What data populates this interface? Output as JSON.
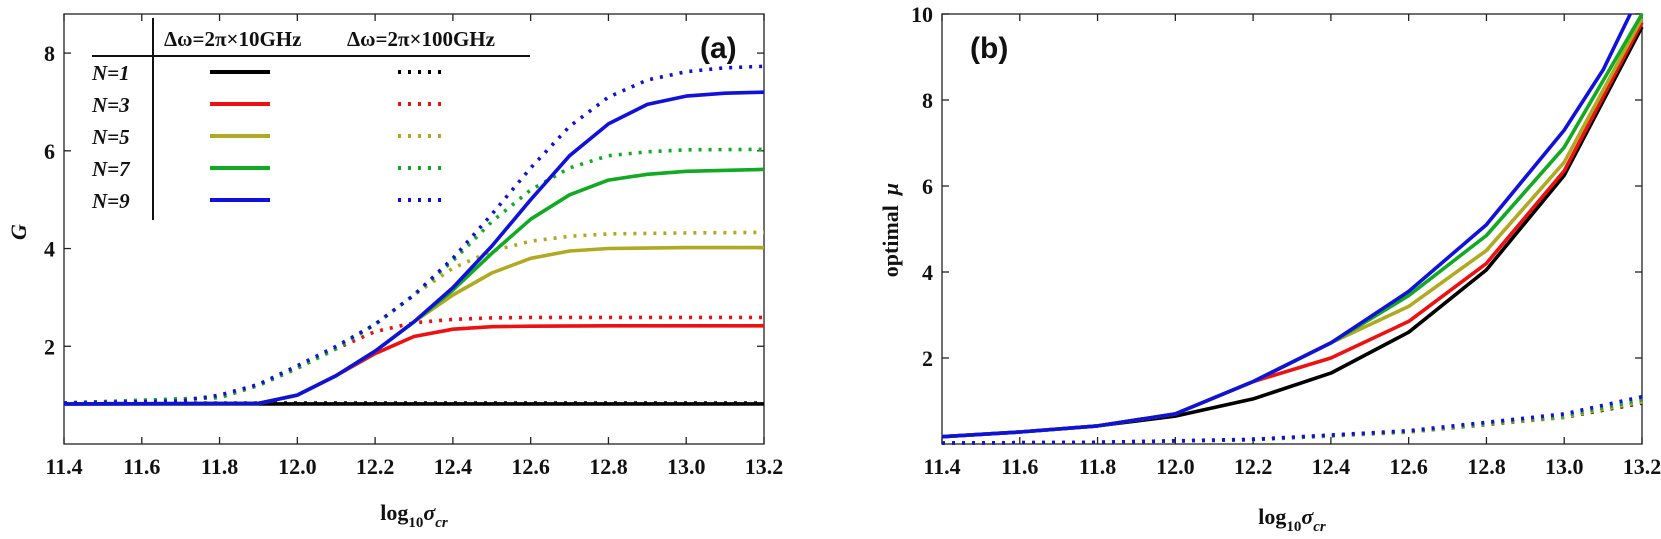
{
  "chart_data": [
    {
      "type": "line",
      "panel_label": "(a)",
      "ylabel": "G",
      "xlabel": {
        "main": "log",
        "sub": "10",
        "var": "σ",
        "varsub": "cr"
      },
      "xlim": [
        11.4,
        13.2
      ],
      "ylim": [
        0,
        8.8
      ],
      "xticks": [
        "11.4",
        "11.6",
        "11.8",
        "12.0",
        "12.2",
        "12.4",
        "12.6",
        "12.8",
        "13.0",
        "13.2"
      ],
      "yticks": [
        "2",
        "4",
        "6",
        "8"
      ],
      "legend": {
        "placement": "top-left",
        "col1_header": "Δω=2π×10GHz",
        "col2_header": "Δω=2π×100GHz",
        "rows": [
          {
            "label": "N=1",
            "color": "#000000"
          },
          {
            "label": "N=3",
            "color": "#ee1111"
          },
          {
            "label": "N=5",
            "color": "#b0aa22"
          },
          {
            "label": "N=7",
            "color": "#11aa22"
          },
          {
            "label": "N=9",
            "color": "#1111dd"
          }
        ]
      },
      "series": [
        {
          "name": "N=1 Δω=2π×10GHz",
          "color": "#000000",
          "style": "solid",
          "x": [
            11.4,
            13.2
          ],
          "y": [
            0.82,
            0.82
          ]
        },
        {
          "name": "N=1 Δω=2π×100GHz",
          "color": "#000000",
          "style": "dotted",
          "x": [
            11.4,
            13.2
          ],
          "y": [
            0.84,
            0.84
          ]
        },
        {
          "name": "N=3 Δω=2π×10GHz",
          "color": "#ee1111",
          "style": "solid",
          "x": [
            11.4,
            11.9,
            12.0,
            12.1,
            12.2,
            12.3,
            12.4,
            12.5,
            12.6,
            12.8,
            13.0,
            13.2
          ],
          "y": [
            0.82,
            0.83,
            1.0,
            1.4,
            1.85,
            2.2,
            2.35,
            2.4,
            2.41,
            2.42,
            2.42,
            2.42
          ]
        },
        {
          "name": "N=3 Δω=2π×100GHz",
          "color": "#ee1111",
          "style": "dotted",
          "x": [
            11.4,
            11.8,
            11.9,
            12.0,
            12.1,
            12.2,
            12.3,
            12.4,
            12.5,
            12.6,
            12.8,
            13.0,
            13.2
          ],
          "y": [
            0.84,
            0.95,
            1.2,
            1.55,
            1.95,
            2.3,
            2.48,
            2.55,
            2.58,
            2.59,
            2.59,
            2.59,
            2.59
          ]
        },
        {
          "name": "N=5 Δω=2π×10GHz",
          "color": "#b0aa22",
          "style": "solid",
          "x": [
            11.4,
            11.9,
            12.0,
            12.1,
            12.2,
            12.3,
            12.4,
            12.5,
            12.6,
            12.7,
            12.8,
            13.0,
            13.2
          ],
          "y": [
            0.82,
            0.83,
            1.0,
            1.4,
            1.9,
            2.5,
            3.05,
            3.5,
            3.8,
            3.95,
            4.0,
            4.02,
            4.02
          ]
        },
        {
          "name": "N=5 Δω=2π×100GHz",
          "color": "#b0aa22",
          "style": "dotted",
          "x": [
            11.4,
            11.8,
            11.9,
            12.0,
            12.1,
            12.2,
            12.3,
            12.4,
            12.5,
            12.6,
            12.7,
            12.8,
            13.0,
            13.2
          ],
          "y": [
            0.84,
            0.95,
            1.2,
            1.55,
            1.95,
            2.45,
            3.05,
            3.6,
            3.95,
            4.15,
            4.25,
            4.3,
            4.32,
            4.33
          ]
        },
        {
          "name": "N=7 Δω=2π×10GHz",
          "color": "#11aa22",
          "style": "solid",
          "x": [
            11.4,
            11.9,
            12.0,
            12.1,
            12.2,
            12.3,
            12.4,
            12.5,
            12.6,
            12.7,
            12.8,
            12.9,
            13.0,
            13.2
          ],
          "y": [
            0.82,
            0.83,
            1.0,
            1.4,
            1.9,
            2.5,
            3.15,
            3.9,
            4.6,
            5.1,
            5.4,
            5.52,
            5.58,
            5.62
          ]
        },
        {
          "name": "N=7 Δω=2π×100GHz",
          "color": "#11aa22",
          "style": "dotted",
          "x": [
            11.4,
            11.8,
            11.9,
            12.0,
            12.1,
            12.2,
            12.3,
            12.4,
            12.5,
            12.6,
            12.7,
            12.8,
            12.9,
            13.0,
            13.2
          ],
          "y": [
            0.84,
            0.95,
            1.2,
            1.55,
            1.95,
            2.45,
            3.05,
            3.75,
            4.55,
            5.2,
            5.65,
            5.9,
            5.98,
            6.02,
            6.03
          ]
        },
        {
          "name": "N=9 Δω=2π×10GHz",
          "color": "#1111dd",
          "style": "solid",
          "x": [
            11.4,
            11.9,
            12.0,
            12.1,
            12.2,
            12.3,
            12.4,
            12.5,
            12.6,
            12.7,
            12.8,
            12.9,
            13.0,
            13.1,
            13.2
          ],
          "y": [
            0.82,
            0.83,
            1.0,
            1.4,
            1.9,
            2.5,
            3.2,
            4.05,
            5.0,
            5.9,
            6.55,
            6.95,
            7.12,
            7.18,
            7.2
          ]
        },
        {
          "name": "N=9 Δω=2π×100GHz",
          "color": "#1111dd",
          "style": "dotted",
          "x": [
            11.4,
            11.7,
            11.8,
            11.9,
            12.0,
            12.1,
            12.2,
            12.3,
            12.4,
            12.5,
            12.6,
            12.7,
            12.8,
            12.9,
            13.0,
            13.1,
            13.2
          ],
          "y": [
            0.84,
            0.88,
            1.0,
            1.22,
            1.6,
            2.0,
            2.45,
            3.05,
            3.8,
            4.7,
            5.65,
            6.5,
            7.1,
            7.45,
            7.62,
            7.7,
            7.73
          ]
        }
      ]
    },
    {
      "type": "line",
      "panel_label": "(b)",
      "ylabel": {
        "main": "optimal",
        "var": "μ"
      },
      "xlabel": {
        "main": "log",
        "sub": "10",
        "var": "σ",
        "varsub": "cr"
      },
      "xlim": [
        11.4,
        13.2
      ],
      "ylim": [
        0,
        10
      ],
      "xticks": [
        "11.4",
        "11.6",
        "11.8",
        "12.0",
        "12.2",
        "12.4",
        "12.6",
        "12.8",
        "13.0",
        "13.2"
      ],
      "yticks": [
        "2",
        "4",
        "6",
        "8",
        "10"
      ],
      "series": [
        {
          "name": "N=1 Δω=2π×10GHz",
          "color": "#000000",
          "style": "solid",
          "x": [
            11.4,
            11.6,
            11.8,
            12.0,
            12.2,
            12.4,
            12.6,
            12.8,
            13.0,
            13.2
          ],
          "y": [
            0.17,
            0.28,
            0.42,
            0.65,
            1.05,
            1.65,
            2.6,
            4.05,
            6.25,
            9.7
          ]
        },
        {
          "name": "N=3 Δω=2π×10GHz",
          "color": "#ee1111",
          "style": "solid",
          "x": [
            11.4,
            11.6,
            11.8,
            12.0,
            12.2,
            12.4,
            12.6,
            12.8,
            13.0,
            13.2
          ],
          "y": [
            0.17,
            0.28,
            0.42,
            0.7,
            1.45,
            2.0,
            2.85,
            4.2,
            6.35,
            9.8
          ]
        },
        {
          "name": "N=5 Δω=2π×10GHz",
          "color": "#b0aa22",
          "style": "solid",
          "x": [
            11.4,
            11.6,
            11.8,
            12.0,
            12.2,
            12.4,
            12.6,
            12.8,
            13.0,
            13.2
          ],
          "y": [
            0.17,
            0.28,
            0.42,
            0.7,
            1.45,
            2.35,
            3.2,
            4.5,
            6.55,
            9.9
          ]
        },
        {
          "name": "N=7 Δω=2π×10GHz",
          "color": "#11aa22",
          "style": "solid",
          "x": [
            11.4,
            11.6,
            11.8,
            12.0,
            12.2,
            12.4,
            12.6,
            12.8,
            13.0,
            13.2
          ],
          "y": [
            0.17,
            0.28,
            0.42,
            0.7,
            1.45,
            2.35,
            3.45,
            4.85,
            6.9,
            10.0
          ]
        },
        {
          "name": "N=9 Δω=2π×10GHz",
          "color": "#1111dd",
          "style": "solid",
          "x": [
            11.4,
            11.6,
            11.8,
            12.0,
            12.2,
            12.4,
            12.6,
            12.8,
            13.0,
            13.1,
            13.17
          ],
          "y": [
            0.17,
            0.28,
            0.42,
            0.7,
            1.45,
            2.35,
            3.55,
            5.1,
            7.3,
            8.7,
            10.0
          ]
        },
        {
          "name": "N=1 Δω=2π×100GHz",
          "color": "#000000",
          "style": "dotted",
          "x": [
            11.4,
            11.8,
            12.2,
            12.6,
            13.0,
            13.2
          ],
          "y": [
            0.02,
            0.04,
            0.1,
            0.28,
            0.62,
            0.95
          ]
        },
        {
          "name": "N=3 Δω=2π×100GHz",
          "color": "#ee1111",
          "style": "dotted",
          "x": [
            11.4,
            11.8,
            12.2,
            12.6,
            13.0,
            13.2
          ],
          "y": [
            0.02,
            0.04,
            0.1,
            0.28,
            0.63,
            0.97
          ]
        },
        {
          "name": "N=5 Δω=2π×100GHz",
          "color": "#b0aa22",
          "style": "dotted",
          "x": [
            11.4,
            11.8,
            12.2,
            12.6,
            13.0,
            13.2
          ],
          "y": [
            0.02,
            0.04,
            0.1,
            0.28,
            0.63,
            0.98
          ]
        },
        {
          "name": "N=7 Δω=2π×100GHz",
          "color": "#11aa22",
          "style": "dotted",
          "x": [
            11.4,
            11.8,
            12.2,
            12.6,
            13.0,
            13.2
          ],
          "y": [
            0.02,
            0.04,
            0.1,
            0.29,
            0.66,
            1.03
          ]
        },
        {
          "name": "N=9 Δω=2π×100GHz",
          "color": "#1111dd",
          "style": "dotted",
          "x": [
            11.4,
            11.8,
            12.2,
            12.6,
            13.0,
            13.2
          ],
          "y": [
            0.02,
            0.04,
            0.11,
            0.31,
            0.7,
            1.1
          ]
        }
      ]
    }
  ]
}
